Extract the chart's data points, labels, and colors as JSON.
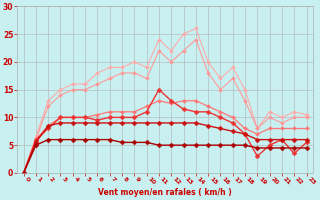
{
  "xlabel": "Vent moyen/en rafales ( km/h )",
  "background_color": "#c8f0f0",
  "grid_color": "#b0b0b0",
  "xlim": [
    -0.5,
    23.5
  ],
  "ylim": [
    0,
    30
  ],
  "yticks": [
    0,
    5,
    10,
    15,
    20,
    25,
    30
  ],
  "xticks": [
    0,
    1,
    2,
    3,
    4,
    5,
    6,
    7,
    8,
    9,
    10,
    11,
    12,
    13,
    14,
    15,
    16,
    17,
    18,
    19,
    20,
    21,
    22,
    23
  ],
  "lines": [
    {
      "color": "#ffaaaa",
      "linewidth": 0.8,
      "marker": "D",
      "markersize": 2.0,
      "data_x": [
        0,
        1,
        2,
        3,
        4,
        5,
        6,
        7,
        8,
        9,
        10,
        11,
        12,
        13,
        14,
        15,
        16,
        17,
        18,
        19,
        20,
        21,
        22,
        23
      ],
      "data_y": [
        0,
        6.5,
        13,
        15,
        16,
        16,
        18,
        19,
        19,
        20,
        19,
        24,
        22,
        25,
        26,
        20,
        17,
        19,
        15,
        8,
        11,
        10,
        11,
        10.5
      ]
    },
    {
      "color": "#ff9999",
      "linewidth": 0.8,
      "marker": "D",
      "markersize": 2.0,
      "data_x": [
        0,
        1,
        2,
        3,
        4,
        5,
        6,
        7,
        8,
        9,
        10,
        11,
        12,
        13,
        14,
        15,
        16,
        17,
        18,
        19,
        20,
        21,
        22,
        23
      ],
      "data_y": [
        0,
        6,
        12,
        14,
        15,
        15,
        16,
        17,
        18,
        18,
        17,
        22,
        20,
        22,
        24,
        18,
        15,
        17,
        13,
        8,
        10,
        9,
        10,
        10
      ]
    },
    {
      "color": "#ff7777",
      "linewidth": 0.9,
      "marker": "D",
      "markersize": 2.0,
      "data_x": [
        0,
        1,
        2,
        3,
        4,
        5,
        6,
        7,
        8,
        9,
        10,
        11,
        12,
        13,
        14,
        15,
        16,
        17,
        18,
        19,
        20,
        21,
        22,
        23
      ],
      "data_y": [
        0,
        6,
        8.5,
        10,
        10,
        10,
        10.5,
        11,
        11,
        11,
        12,
        13,
        12.5,
        13,
        13,
        12,
        11,
        10,
        8,
        7,
        8,
        8,
        8,
        8
      ]
    },
    {
      "color": "#ee3333",
      "linewidth": 1.0,
      "marker": "D",
      "markersize": 2.5,
      "data_x": [
        0,
        1,
        2,
        3,
        4,
        5,
        6,
        7,
        8,
        9,
        10,
        11,
        12,
        13,
        14,
        15,
        16,
        17,
        18,
        19,
        20,
        21,
        22,
        23
      ],
      "data_y": [
        0,
        6,
        8,
        10,
        10,
        10,
        9.5,
        10,
        10,
        10,
        11,
        15,
        13,
        11.5,
        11,
        11,
        10,
        9,
        7,
        3,
        5,
        6,
        3.5,
        5.5
      ]
    },
    {
      "color": "#cc1111",
      "linewidth": 1.0,
      "marker": "D",
      "markersize": 2.5,
      "data_x": [
        0,
        1,
        2,
        3,
        4,
        5,
        6,
        7,
        8,
        9,
        10,
        11,
        12,
        13,
        14,
        15,
        16,
        17,
        18,
        19,
        20,
        21,
        22,
        23
      ],
      "data_y": [
        0,
        5.5,
        8.5,
        9,
        9,
        9,
        9,
        9,
        9,
        9,
        9,
        9,
        9,
        9,
        9,
        8.5,
        8,
        7.5,
        7,
        6,
        6,
        6,
        6,
        6
      ]
    },
    {
      "color": "#aa0000",
      "linewidth": 1.0,
      "marker": "D",
      "markersize": 2.5,
      "data_x": [
        0,
        1,
        2,
        3,
        4,
        5,
        6,
        7,
        8,
        9,
        10,
        11,
        12,
        13,
        14,
        15,
        16,
        17,
        18,
        19,
        20,
        21,
        22,
        23
      ],
      "data_y": [
        0,
        5,
        6,
        6,
        6,
        6,
        6,
        6,
        5.5,
        5.5,
        5.5,
        5,
        5,
        5,
        5,
        5,
        5,
        5,
        5,
        4.5,
        4.5,
        4.5,
        4.5,
        4.5
      ]
    }
  ]
}
